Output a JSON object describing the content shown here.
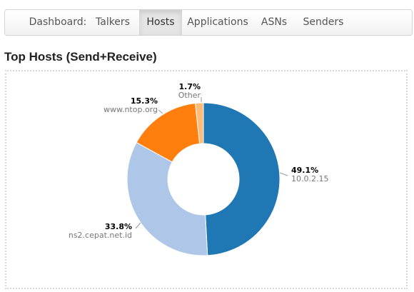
{
  "nav": {
    "items": [
      {
        "label": "Dashboard:",
        "active": false
      },
      {
        "label": "Talkers",
        "active": false
      },
      {
        "label": "Hosts",
        "active": true
      },
      {
        "label": "Applications",
        "active": false
      },
      {
        "label": "ASNs",
        "active": false
      },
      {
        "label": "Senders",
        "active": false
      }
    ]
  },
  "page": {
    "title": "Top Hosts (Send+Receive)"
  },
  "chart_data": {
    "type": "pie",
    "donut": true,
    "title": "",
    "slices": [
      {
        "label": "10.0.2.15",
        "value": 49.1,
        "percent_label": "49.1%",
        "color": "#1f77b4"
      },
      {
        "label": "ns2.cepat.net.id",
        "value": 33.8,
        "percent_label": "33.8%",
        "color": "#aec7e8"
      },
      {
        "label": "www.ntop.org",
        "value": 15.3,
        "percent_label": "15.3%",
        "color": "#ff7f0e"
      },
      {
        "label": "Other",
        "value": 1.7,
        "percent_label": "1.7%",
        "color": "#ffbb78"
      }
    ]
  }
}
